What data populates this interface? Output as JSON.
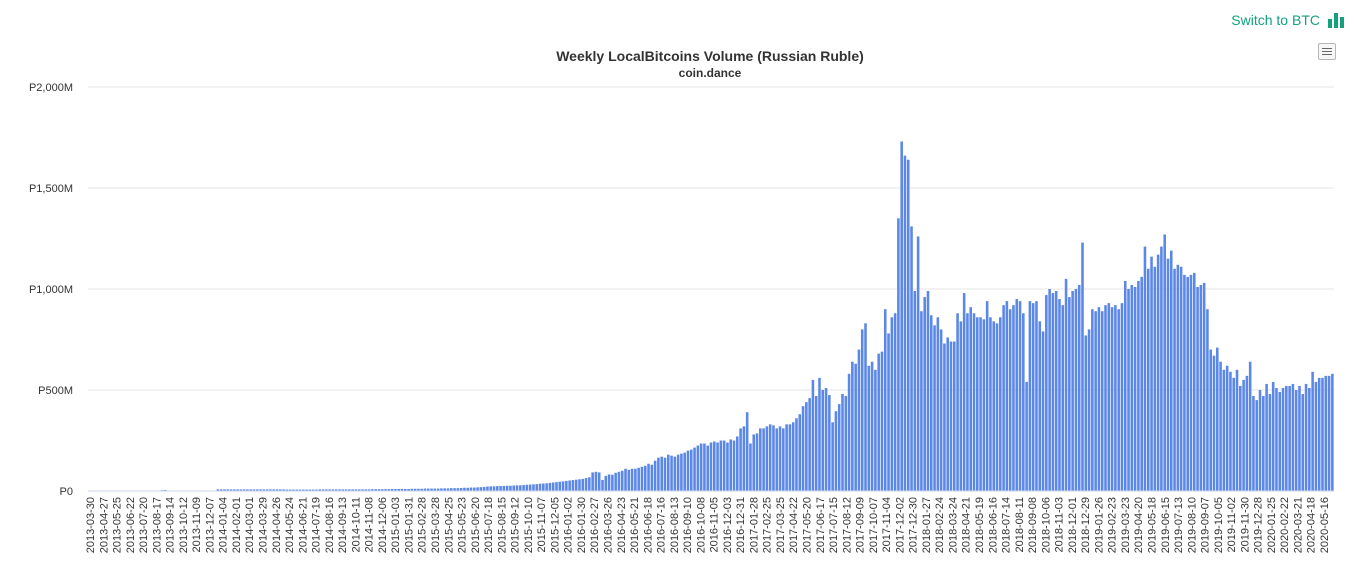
{
  "switch_link": {
    "label": "Switch to BTC",
    "color": "#13a17f"
  },
  "chart_data": {
    "type": "bar",
    "title": "Weekly LocalBitcoins Volume (Russian Ruble)",
    "subtitle": "coin.dance",
    "xlabel": "",
    "ylabel": "",
    "ylim": [
      0,
      2000
    ],
    "y_unit": "millions of RUB",
    "yticks": [
      "P0",
      "P500M",
      "P1,000M",
      "P1,500M",
      "P2,000M"
    ],
    "ytick_values": [
      0,
      500,
      1000,
      1500,
      2000
    ],
    "xticks": [
      "2013-03-30",
      "2013-04-27",
      "2013-05-25",
      "2013-06-22",
      "2013-07-20",
      "2013-08-17",
      "2013-09-14",
      "2013-10-12",
      "2013-11-09",
      "2013-12-07",
      "2014-01-04",
      "2014-02-01",
      "2014-03-01",
      "2014-03-29",
      "2014-04-26",
      "2014-05-24",
      "2014-06-21",
      "2014-07-19",
      "2014-08-16",
      "2014-09-13",
      "2014-10-11",
      "2014-11-08",
      "2014-12-06",
      "2015-01-03",
      "2015-01-31",
      "2015-02-28",
      "2015-03-28",
      "2015-04-25",
      "2015-05-23",
      "2015-06-20",
      "2015-07-18",
      "2015-08-15",
      "2015-09-12",
      "2015-10-10",
      "2015-11-07",
      "2015-12-05",
      "2016-01-02",
      "2016-01-30",
      "2016-02-27",
      "2016-03-26",
      "2016-04-23",
      "2016-05-21",
      "2016-06-18",
      "2016-07-16",
      "2016-08-13",
      "2016-09-10",
      "2016-10-08",
      "2016-11-05",
      "2016-12-03",
      "2016-12-31",
      "2017-01-28",
      "2017-02-25",
      "2017-03-25",
      "2017-04-22",
      "2017-05-20",
      "2017-06-17",
      "2017-07-15",
      "2017-08-12",
      "2017-09-09",
      "2017-10-07",
      "2017-11-04",
      "2017-12-02",
      "2017-12-30",
      "2018-01-27",
      "2018-02-24",
      "2018-03-24",
      "2018-04-21",
      "2018-05-19",
      "2018-06-16",
      "2018-07-14",
      "2018-08-11",
      "2018-09-08",
      "2018-10-06",
      "2018-11-03",
      "2018-12-01",
      "2018-12-29",
      "2019-01-26",
      "2019-02-23",
      "2019-03-23",
      "2019-04-20",
      "2019-05-18",
      "2019-06-15",
      "2019-07-13",
      "2019-08-10",
      "2019-09-07",
      "2019-10-05",
      "2019-11-02",
      "2019-11-30",
      "2019-12-28",
      "2020-01-25",
      "2020-02-22",
      "2020-03-21",
      "2020-04-18",
      "2020-05-16"
    ],
    "values": [
      1,
      1,
      1,
      1,
      1,
      1,
      1,
      1,
      1,
      1,
      1,
      1,
      1,
      1,
      1,
      1,
      1,
      1,
      1,
      1,
      1,
      1,
      4,
      5,
      2,
      2,
      2,
      2,
      2,
      2,
      2,
      2,
      2,
      1,
      1,
      1,
      1,
      1,
      1,
      8,
      8,
      8,
      8,
      8,
      8,
      8,
      8,
      8,
      8,
      8,
      8,
      8,
      8,
      8,
      8,
      8,
      8,
      8,
      8,
      8,
      7,
      7,
      7,
      7,
      7,
      7,
      7,
      7,
      7,
      7,
      8,
      8,
      8,
      8,
      8,
      8,
      8,
      8,
      8,
      8,
      8,
      8,
      8,
      8,
      8,
      8,
      9,
      9,
      9,
      9,
      9,
      9,
      10,
      10,
      10,
      10,
      10,
      10,
      11,
      11,
      11,
      11,
      12,
      12,
      12,
      12,
      12,
      13,
      13,
      13,
      14,
      14,
      14,
      15,
      16,
      16,
      17,
      17,
      18,
      19,
      20,
      22,
      23,
      23,
      24,
      25,
      25,
      26,
      26,
      27,
      28,
      28,
      30,
      31,
      32,
      33,
      34,
      36,
      37,
      38,
      40,
      42,
      44,
      46,
      48,
      50,
      52,
      54,
      56,
      58,
      60,
      64,
      68,
      92,
      95,
      92,
      55,
      75,
      82,
      80,
      90,
      95,
      100,
      110,
      105,
      110,
      110,
      115,
      120,
      125,
      135,
      130,
      150,
      165,
      170,
      165,
      180,
      175,
      170,
      180,
      185,
      190,
      200,
      205,
      215,
      225,
      235,
      235,
      225,
      240,
      245,
      240,
      250,
      250,
      240,
      255,
      250,
      270,
      310,
      320,
      390,
      235,
      280,
      285,
      310,
      310,
      320,
      330,
      325,
      310,
      320,
      310,
      330,
      330,
      340,
      360,
      380,
      420,
      440,
      460,
      550,
      470,
      560,
      500,
      510,
      475,
      340,
      395,
      430,
      480,
      470,
      580,
      640,
      630,
      700,
      800,
      830,
      620,
      640,
      600,
      680,
      690,
      900,
      780,
      860,
      880,
      1350,
      1730,
      1660,
      1640,
      1310,
      990,
      1260,
      890,
      960,
      990,
      870,
      820,
      860,
      800,
      730,
      760,
      740,
      740,
      880,
      840,
      980,
      880,
      910,
      880,
      860,
      860,
      850,
      940,
      860,
      840,
      830,
      860,
      920,
      940,
      900,
      920,
      950,
      940,
      880,
      540,
      940,
      930,
      940,
      840,
      790,
      970,
      1000,
      980,
      990,
      950,
      920,
      1050,
      960,
      990,
      1000,
      1020,
      1230,
      770,
      800,
      900,
      890,
      910,
      890,
      920,
      930,
      910,
      920,
      900,
      930,
      1040,
      1000,
      1020,
      1010,
      1040,
      1060,
      1210,
      1100,
      1160,
      1110,
      1170,
      1210,
      1270,
      1150,
      1190,
      1100,
      1120,
      1110,
      1070,
      1060,
      1070,
      1080,
      1010,
      1020,
      1030,
      900,
      700,
      670,
      710,
      640,
      600,
      620,
      590,
      560,
      600,
      520,
      550,
      570,
      640,
      470,
      450,
      500,
      470,
      530,
      480,
      540,
      510,
      490,
      510,
      520,
      520,
      530,
      500,
      520,
      480,
      530,
      510,
      590,
      540,
      560,
      560,
      570,
      570,
      580
    ]
  }
}
